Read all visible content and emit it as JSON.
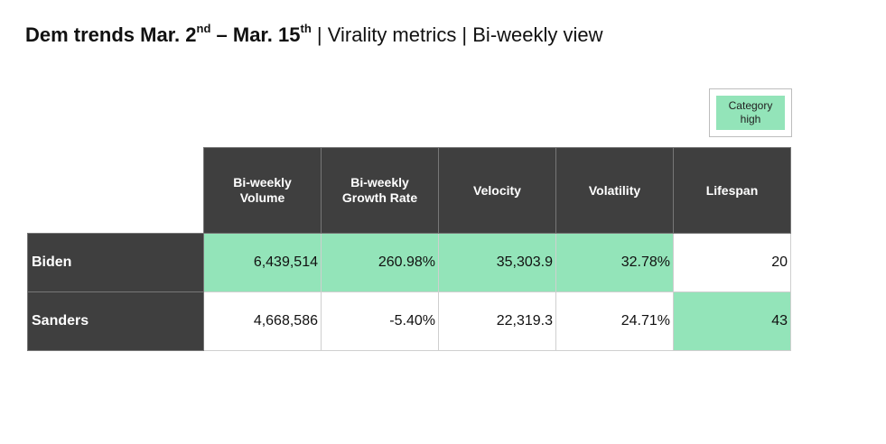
{
  "title": {
    "prefix": "Dem trends Mar. 2",
    "sup1": "nd",
    "mid": " – Mar. 15",
    "sup2": "th",
    "rest": " | Virality metrics | Bi-weekly view"
  },
  "legend": {
    "label": "Category high",
    "color": "#93e4b9"
  },
  "colors": {
    "header_bg": "#3f3f3f",
    "highlight": "#93e4b9"
  },
  "chart_data": {
    "type": "table",
    "columns": [
      "Bi-weekly Volume",
      "Bi-weekly Growth Rate",
      "Velocity",
      "Volatility",
      "Lifespan"
    ],
    "rows": [
      {
        "name": "Biden",
        "values": [
          "6,439,514",
          "260.98%",
          "35,303.9",
          "32.78%",
          "20"
        ],
        "high": [
          true,
          true,
          true,
          true,
          false
        ]
      },
      {
        "name": "Sanders",
        "values": [
          "4,668,586",
          "-5.40%",
          "22,319.3",
          "24.71%",
          "43"
        ],
        "high": [
          false,
          false,
          false,
          false,
          true
        ]
      }
    ]
  }
}
